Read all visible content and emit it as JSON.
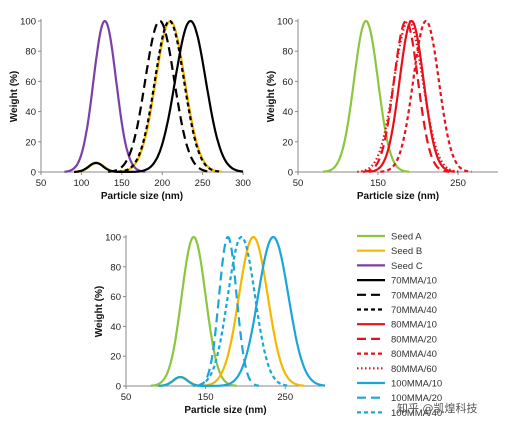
{
  "chart_data": [
    {
      "type": "line",
      "panel": "top-left",
      "xlabel": "Particle size (nm)",
      "ylabel": "Weight (%)",
      "xlim": [
        50,
        300
      ],
      "ylim": [
        0,
        100
      ],
      "xticks": [
        "50",
        "100",
        "150",
        "200",
        "250",
        "300"
      ],
      "yticks": [
        "0",
        "20",
        "40",
        "60",
        "80",
        "100"
      ],
      "series": [
        {
          "name": "Seed B",
          "color": "#f5b800",
          "dash": "solid",
          "peak": 210,
          "sigma": 18,
          "height": 100,
          "bump": {
            "center": 119,
            "sigma": 9,
            "height": 6
          }
        },
        {
          "name": "Seed C",
          "color": "#7b3fa6",
          "dash": "solid",
          "peak": 129,
          "sigma": 14,
          "height": 100
        },
        {
          "name": "70MMA/10",
          "color": "#000000",
          "dash": "solid",
          "peak": 235,
          "sigma": 19,
          "height": 100,
          "bump": {
            "center": 118,
            "sigma": 9,
            "height": 6
          }
        },
        {
          "name": "70MMA/20",
          "color": "#000000",
          "dash": "long",
          "peak": 197,
          "sigma": 18,
          "height": 100
        },
        {
          "name": "70MMA/40",
          "color": "#000000",
          "dash": "short",
          "peak": 209,
          "sigma": 18,
          "height": 100
        }
      ]
    },
    {
      "type": "line",
      "panel": "top-right",
      "xlabel": "Particle size (nm)",
      "ylabel": "Weight (%)",
      "xlim": [
        50,
        300
      ],
      "ylim": [
        0,
        100
      ],
      "xticks": [
        "50",
        "150",
        "250"
      ],
      "yticks": [
        "0",
        "20",
        "40",
        "60",
        "80",
        "100"
      ],
      "series": [
        {
          "name": "Seed A",
          "color": "#8cc63f",
          "dash": "solid",
          "peak": 135,
          "sigma": 15,
          "height": 100
        },
        {
          "name": "80MMA/10",
          "color": "#e8101a",
          "dash": "solid",
          "peak": 192,
          "sigma": 15,
          "height": 100
        },
        {
          "name": "80MMA/20",
          "color": "#e8101a",
          "dash": "long",
          "peak": 185,
          "sigma": 15,
          "height": 100
        },
        {
          "name": "80MMA/40",
          "color": "#e8101a",
          "dash": "short",
          "peak": 210,
          "sigma": 16,
          "height": 100
        },
        {
          "name": "80MMA/60",
          "color": "#e8101a",
          "dash": "dot",
          "peak": 188,
          "sigma": 18,
          "height": 100
        }
      ]
    },
    {
      "type": "line",
      "panel": "bottom",
      "xlabel": "Particle size (nm)",
      "ylabel": "Weight (%)",
      "xlim": [
        50,
        300
      ],
      "ylim": [
        0,
        100
      ],
      "xticks": [
        "50",
        "150",
        "250"
      ],
      "yticks": [
        "0",
        "20",
        "40",
        "60",
        "80",
        "100"
      ],
      "series": [
        {
          "name": "Seed A",
          "color": "#8cc63f",
          "dash": "solid",
          "peak": 135,
          "sigma": 15,
          "height": 100
        },
        {
          "name": "Seed B",
          "color": "#f5b800",
          "dash": "solid",
          "peak": 210,
          "sigma": 18,
          "height": 100,
          "bump": {
            "center": 119,
            "sigma": 9,
            "height": 6
          }
        },
        {
          "name": "100MMA/10",
          "color": "#1aa6d8",
          "dash": "solid",
          "peak": 235,
          "sigma": 19,
          "height": 100,
          "bump": {
            "center": 118,
            "sigma": 9,
            "height": 6
          }
        },
        {
          "name": "100MMA/20",
          "color": "#1aa6d8",
          "dash": "long",
          "peak": 178,
          "sigma": 11,
          "height": 100
        },
        {
          "name": "100MMA/40",
          "color": "#1aa6d8",
          "dash": "short",
          "peak": 195,
          "sigma": 17,
          "height": 100
        }
      ]
    }
  ],
  "legend": [
    {
      "name": "Seed A",
      "color": "#8cc63f",
      "dash": "solid"
    },
    {
      "name": "Seed B",
      "color": "#f5b800",
      "dash": "solid"
    },
    {
      "name": "Seed C",
      "color": "#7b3fa6",
      "dash": "solid"
    },
    {
      "name": "70MMA/10",
      "color": "#000000",
      "dash": "solid"
    },
    {
      "name": "70MMA/20",
      "color": "#000000",
      "dash": "long"
    },
    {
      "name": "70MMA/40",
      "color": "#000000",
      "dash": "short"
    },
    {
      "name": "80MMA/10",
      "color": "#e8101a",
      "dash": "solid"
    },
    {
      "name": "80MMA/20",
      "color": "#e8101a",
      "dash": "long"
    },
    {
      "name": "80MMA/40",
      "color": "#e8101a",
      "dash": "short"
    },
    {
      "name": "80MMA/60",
      "color": "#e8101a",
      "dash": "dot"
    },
    {
      "name": "100MMA/10",
      "color": "#1aa6d8",
      "dash": "solid"
    },
    {
      "name": "100MMA/20",
      "color": "#1aa6d8",
      "dash": "long"
    },
    {
      "name": "100MMA/40",
      "color": "#1aa6d8",
      "dash": "short"
    }
  ],
  "watermark": "知乎 @凯煌科技"
}
